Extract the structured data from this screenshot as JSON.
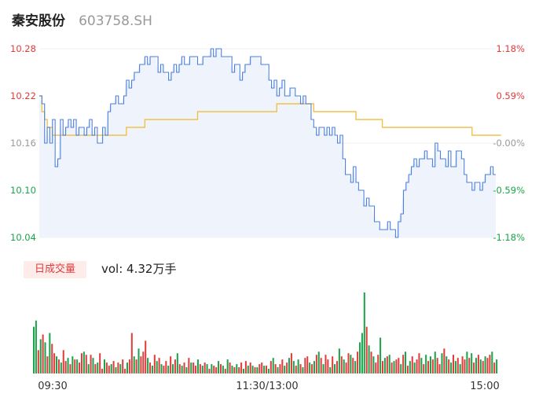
{
  "header": {
    "name": "秦安股份",
    "code": "603758.SH"
  },
  "volume_panel": {
    "tag_label": "日成交量",
    "vol_text": "vol: 4.32万手"
  },
  "colors": {
    "price_line": "#4a7fe0",
    "avg_line": "#f0c14b",
    "up": "#e03c3c",
    "down": "#1aa34a",
    "flat": "#999999",
    "area_fill": "#eef3fc"
  },
  "chart_data": {
    "type": "line",
    "title": "",
    "prev_close": 10.16,
    "ylim": [
      10.04,
      10.28
    ],
    "y_ticks": [
      {
        "price": "10.28",
        "pct": "1.18%",
        "dir": "up"
      },
      {
        "price": "10.22",
        "pct": "0.59%",
        "dir": "up"
      },
      {
        "price": "10.16",
        "pct": "-0.00%",
        "dir": "flat"
      },
      {
        "price": "10.10",
        "pct": "-0.59%",
        "dir": "down"
      },
      {
        "price": "10.04",
        "pct": "-1.18%",
        "dir": "down"
      }
    ],
    "time_ticks": [
      "09:30",
      "11:30/13:00",
      "15:00"
    ],
    "series": [
      {
        "key": "price",
        "values": [
          10.22,
          10.21,
          10.16,
          10.18,
          10.16,
          10.19,
          10.13,
          10.14,
          10.19,
          10.17,
          10.18,
          10.19,
          10.18,
          10.19,
          10.17,
          10.18,
          10.18,
          10.17,
          10.18,
          10.19,
          10.17,
          10.18,
          10.16,
          10.16,
          10.18,
          10.17,
          10.2,
          10.21,
          10.21,
          10.22,
          10.21,
          10.21,
          10.22,
          10.24,
          10.23,
          10.24,
          10.25,
          10.25,
          10.26,
          10.26,
          10.27,
          10.26,
          10.27,
          10.27,
          10.27,
          10.25,
          10.26,
          10.25,
          10.25,
          10.24,
          10.25,
          10.26,
          10.25,
          10.26,
          10.27,
          10.26,
          10.26,
          10.27,
          10.27,
          10.27,
          10.26,
          10.26,
          10.27,
          10.27,
          10.27,
          10.28,
          10.27,
          10.28,
          10.28,
          10.27,
          10.27,
          10.27,
          10.27,
          10.25,
          10.26,
          10.26,
          10.24,
          10.25,
          10.26,
          10.26,
          10.27,
          10.27,
          10.27,
          10.27,
          10.26,
          10.26,
          10.26,
          10.24,
          10.23,
          10.24,
          10.22,
          10.23,
          10.24,
          10.22,
          10.22,
          10.23,
          10.23,
          10.22,
          10.22,
          10.21,
          10.22,
          10.21,
          10.21,
          10.19,
          10.18,
          10.17,
          10.18,
          10.18,
          10.17,
          10.18,
          10.17,
          10.18,
          10.17,
          10.16,
          10.17,
          10.14,
          10.12,
          10.12,
          10.11,
          10.13,
          10.11,
          10.1,
          10.1,
          10.08,
          10.09,
          10.08,
          10.08,
          10.06,
          10.06,
          10.05,
          10.05,
          10.05,
          10.06,
          10.05,
          10.05,
          10.04,
          10.06,
          10.07,
          10.1,
          10.11,
          10.12,
          10.13,
          10.14,
          10.13,
          10.14,
          10.14,
          10.15,
          10.14,
          10.14,
          10.13,
          10.16,
          10.15,
          10.14,
          10.14,
          10.13,
          10.15,
          10.13,
          10.13,
          10.15,
          10.15,
          10.14,
          10.12,
          10.11,
          10.11,
          10.1,
          10.11,
          10.11,
          10.1,
          10.11,
          10.12,
          10.12,
          10.13,
          10.12,
          10.12
        ]
      },
      {
        "key": "avg",
        "values": [
          10.22,
          10.2,
          10.19,
          10.18,
          10.18,
          10.17,
          10.17,
          10.17,
          10.17,
          10.17,
          10.17,
          10.17,
          10.17,
          10.17,
          10.17,
          10.17,
          10.17,
          10.17,
          10.17,
          10.17,
          10.17,
          10.17,
          10.17,
          10.17,
          10.17,
          10.17,
          10.17,
          10.17,
          10.17,
          10.17,
          10.17,
          10.17,
          10.17,
          10.18,
          10.18,
          10.18,
          10.18,
          10.18,
          10.18,
          10.18,
          10.19,
          10.19,
          10.19,
          10.19,
          10.19,
          10.19,
          10.19,
          10.19,
          10.19,
          10.19,
          10.19,
          10.19,
          10.19,
          10.19,
          10.19,
          10.19,
          10.19,
          10.19,
          10.19,
          10.19,
          10.2,
          10.2,
          10.2,
          10.2,
          10.2,
          10.2,
          10.2,
          10.2,
          10.2,
          10.2,
          10.2,
          10.2,
          10.2,
          10.2,
          10.2,
          10.2,
          10.2,
          10.2,
          10.2,
          10.2,
          10.2,
          10.2,
          10.2,
          10.2,
          10.2,
          10.2,
          10.2,
          10.2,
          10.2,
          10.2,
          10.21,
          10.21,
          10.21,
          10.21,
          10.21,
          10.21,
          10.21,
          10.21,
          10.21,
          10.21,
          10.21,
          10.21,
          10.21,
          10.21,
          10.2,
          10.2,
          10.2,
          10.2,
          10.2,
          10.2,
          10.2,
          10.2,
          10.2,
          10.2,
          10.2,
          10.2,
          10.2,
          10.2,
          10.2,
          10.2,
          10.19,
          10.19,
          10.19,
          10.19,
          10.19,
          10.19,
          10.19,
          10.19,
          10.19,
          10.19,
          10.18,
          10.18,
          10.18,
          10.18,
          10.18,
          10.18,
          10.18,
          10.18,
          10.18,
          10.18,
          10.18,
          10.18,
          10.18,
          10.18,
          10.18,
          10.18,
          10.18,
          10.18,
          10.18,
          10.18,
          10.18,
          10.18,
          10.18,
          10.18,
          10.18,
          10.18,
          10.18,
          10.18,
          10.18,
          10.18,
          10.18,
          10.18,
          10.18,
          10.18,
          10.17,
          10.17,
          10.17,
          10.17,
          10.17,
          10.17,
          10.17,
          10.17,
          10.17,
          10.17,
          10.17,
          10.17
        ]
      }
    ],
    "volume": [
      30,
      34,
      15,
      22,
      25,
      20,
      11,
      26,
      19,
      13,
      11,
      9,
      7,
      15,
      8,
      10,
      6,
      11,
      9,
      9,
      7,
      13,
      14,
      12,
      6,
      12,
      10,
      6,
      7,
      13,
      3,
      9,
      7,
      5,
      6,
      8,
      4,
      7,
      6,
      9,
      3,
      7,
      9,
      26,
      11,
      9,
      16,
      11,
      14,
      21,
      10,
      7,
      5,
      12,
      8,
      10,
      6,
      5,
      8,
      5,
      11,
      6,
      9,
      13,
      6,
      5,
      7,
      4,
      10,
      7,
      7,
      5,
      9,
      6,
      5,
      7,
      6,
      3,
      6,
      5,
      4,
      8,
      6,
      5,
      3,
      9,
      7,
      5,
      4,
      6,
      4,
      7,
      3,
      8,
      5,
      7,
      5,
      4,
      4,
      6,
      7,
      5,
      5,
      3,
      8,
      10,
      6,
      4,
      6,
      9,
      5,
      7,
      10,
      13,
      8,
      5,
      9,
      6,
      4,
      10,
      11,
      7,
      6,
      8,
      12,
      14,
      10,
      6,
      12,
      9,
      4,
      11,
      6,
      8,
      16,
      11,
      9,
      7,
      13,
      12,
      10,
      8,
      14,
      20,
      26,
      52,
      30,
      18,
      14,
      11,
      7,
      12,
      23,
      8,
      10,
      11,
      12,
      7,
      8,
      9,
      10,
      6,
      12,
      14,
      5,
      8,
      11,
      7,
      9,
      13,
      10,
      6,
      12,
      8,
      11,
      9,
      14,
      10,
      6,
      13,
      16,
      11,
      9,
      7,
      12,
      8,
      10,
      6,
      11,
      9,
      14,
      10,
      13,
      7,
      10,
      12,
      9,
      8,
      11,
      10,
      12,
      14,
      7,
      9
    ],
    "volume_dir": [
      "down",
      "down",
      "up",
      "down",
      "up",
      "down",
      "up",
      "down",
      "up",
      "up",
      "down",
      "up",
      "down",
      "up",
      "up",
      "down",
      "up",
      "down",
      "up",
      "down",
      "up",
      "up",
      "down",
      "up",
      "down",
      "up",
      "down",
      "up",
      "down",
      "up",
      "up",
      "down",
      "up",
      "up",
      "down",
      "up",
      "down",
      "up",
      "down",
      "up",
      "up",
      "down",
      "up",
      "up",
      "down",
      "up",
      "down",
      "up",
      "up",
      "up",
      "down",
      "up",
      "down",
      "up",
      "down",
      "up",
      "down",
      "up",
      "up",
      "down",
      "up",
      "down",
      "up",
      "down",
      "up",
      "down",
      "up",
      "down",
      "up",
      "down",
      "up",
      "up",
      "down",
      "up",
      "down",
      "up",
      "down",
      "up",
      "down",
      "up",
      "up",
      "down",
      "up",
      "down",
      "up",
      "down",
      "up",
      "down",
      "up",
      "down",
      "up",
      "up",
      "down",
      "up",
      "down",
      "up",
      "down",
      "up",
      "down",
      "up",
      "up",
      "down",
      "up",
      "down",
      "up",
      "down",
      "up",
      "down",
      "up",
      "up",
      "down",
      "up",
      "down",
      "up",
      "down",
      "up",
      "down",
      "up",
      "down",
      "up",
      "up",
      "down",
      "up",
      "down",
      "up",
      "down",
      "up",
      "down",
      "up",
      "up",
      "down",
      "up",
      "down",
      "up",
      "down",
      "up",
      "down",
      "up",
      "up",
      "down",
      "up",
      "down",
      "up",
      "down",
      "down",
      "down",
      "up",
      "down",
      "up",
      "down",
      "up",
      "up",
      "down",
      "up",
      "down",
      "up",
      "down",
      "up",
      "down",
      "up",
      "up",
      "down",
      "up",
      "down",
      "up",
      "down",
      "up",
      "down",
      "up",
      "up",
      "down",
      "up",
      "down",
      "up",
      "down",
      "up",
      "down",
      "up",
      "up",
      "down",
      "up",
      "down",
      "up",
      "down",
      "up",
      "down",
      "up",
      "down",
      "up",
      "up",
      "down",
      "up",
      "down",
      "up",
      "down",
      "up",
      "down",
      "up",
      "down",
      "up",
      "up",
      "down",
      "up",
      "down",
      "up"
    ]
  }
}
